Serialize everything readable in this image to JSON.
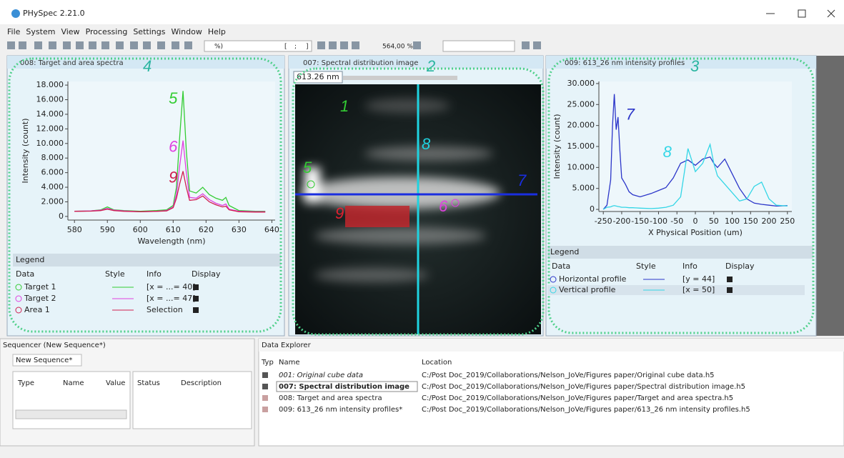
{
  "window": {
    "title": "PHySpec 2.21.0"
  },
  "menu": [
    "File",
    "System",
    "View",
    "Processing",
    "Settings",
    "Window",
    "Help"
  ],
  "toolbar": {
    "texts": [
      "%)",
      "[",
      ";",
      "]"
    ],
    "zoom": "564,00 %"
  },
  "spectra_panel": {
    "title": "008: Target and area spectra",
    "callout": "4",
    "chart": {
      "type": "line",
      "x_label": "Wavelength (nm)",
      "y_label": "Intensity (count)",
      "x": [
        580,
        585,
        588,
        590,
        592,
        595,
        600,
        605,
        608,
        610,
        611,
        612,
        613,
        614,
        615,
        617,
        619,
        621,
        623,
        625,
        626,
        627,
        630,
        635,
        638
      ],
      "series": [
        {
          "name": "Target 1",
          "color": "#33cc33",
          "callout": "5",
          "values": [
            700,
            750,
            900,
            1300,
            900,
            800,
            700,
            800,
            900,
            1500,
            4000,
            11000,
            17200,
            9000,
            3500,
            3200,
            4000,
            3000,
            2500,
            2200,
            2600,
            1500,
            800,
            700,
            700
          ]
        },
        {
          "name": "Target 2",
          "color": "#e040e0",
          "callout": "6",
          "values": [
            700,
            750,
            850,
            1100,
            850,
            750,
            650,
            700,
            800,
            1300,
            3000,
            7000,
            10400,
            6000,
            2600,
            2500,
            3100,
            2300,
            1800,
            1500,
            1700,
            1000,
            700,
            650,
            650
          ]
        },
        {
          "name": "Area 1",
          "color": "#d02050",
          "callout": "9",
          "values": [
            700,
            720,
            800,
            1000,
            800,
            700,
            650,
            700,
            750,
            1200,
            2500,
            4500,
            6200,
            4000,
            2200,
            2300,
            2800,
            2000,
            1600,
            1300,
            1400,
            900,
            650,
            600,
            600
          ]
        }
      ],
      "xlim": [
        578,
        641
      ],
      "ylim": [
        -500,
        18500
      ],
      "xticks": [
        580,
        590,
        600,
        610,
        620,
        630,
        640
      ],
      "yticks": [
        0,
        {
          "value": 2000,
          "label": "2.000"
        },
        {
          "value": 4000,
          "label": "4.000"
        },
        {
          "value": 6000,
          "label": "6.000"
        },
        {
          "value": 8000,
          "label": "8.000"
        },
        {
          "value": 10000,
          "label": "10.000"
        },
        {
          "value": 12000,
          "label": "12.000"
        },
        {
          "value": 14000,
          "label": "14.000"
        },
        {
          "value": 16000,
          "label": "16.000"
        },
        {
          "value": 18000,
          "label": "18.000"
        }
      ]
    },
    "legend": {
      "title": "Legend",
      "columns": [
        "Data",
        "Style",
        "Info",
        "Display"
      ],
      "info": [
        "[x = ...= 40]",
        "[x = ...= 47]",
        "Selection"
      ]
    }
  },
  "image_panel": {
    "title": "007: Spectral distribution image",
    "callout": "2",
    "wavelength": "613.26 nm",
    "image_callouts": [
      "1",
      "5",
      "6",
      "7",
      "8",
      "9"
    ]
  },
  "profile_panel": {
    "title": "009: 613_26 nm intensity profiles",
    "callout": "3",
    "chart": {
      "type": "line",
      "x_label": "X Physical Position (um)",
      "y_label": "Intensity (count)",
      "x": [
        -250,
        -240,
        -230,
        -225,
        -220,
        -215,
        -210,
        -205,
        -200,
        -190,
        -180,
        -170,
        -150,
        -120,
        -100,
        -80,
        -60,
        -40,
        -20,
        0,
        20,
        40,
        50,
        60,
        80,
        100,
        120,
        140,
        160,
        180,
        200,
        220,
        250
      ],
      "series": [
        {
          "name": "Horizontal profile",
          "color": "#2b35c9",
          "callout": "7",
          "values": [
            0,
            1000,
            7000,
            20000,
            27500,
            19000,
            22000,
            14000,
            7500,
            6000,
            4200,
            3500,
            3000,
            3800,
            4500,
            5200,
            7500,
            11000,
            11800,
            10500,
            12000,
            12500,
            11000,
            10000,
            12000,
            8500,
            5000,
            2500,
            1500,
            1200,
            1000,
            800,
            900
          ]
        },
        {
          "name": "Vertical profile",
          "color": "#33d6e6",
          "callout": "8",
          "values": [
            0,
            500,
            600,
            800,
            900,
            800,
            700,
            600,
            500,
            500,
            400,
            400,
            300,
            200,
            300,
            500,
            1000,
            3000,
            14500,
            9000,
            11000,
            15500,
            11000,
            8000,
            6000,
            4000,
            2000,
            2500,
            5500,
            6500,
            2500,
            1000,
            800
          ]
        }
      ],
      "xlim": [
        -262,
        262
      ],
      "ylim": [
        -500,
        30500
      ],
      "xticks": [
        -250,
        -200,
        -150,
        -100,
        -50,
        0,
        50,
        100,
        150,
        200,
        250
      ],
      "yticks": [
        0,
        {
          "value": 5000,
          "label": "5.000"
        },
        {
          "value": 10000,
          "label": "10.000"
        },
        {
          "value": 15000,
          "label": "15.000"
        },
        {
          "value": 20000,
          "label": "20.000"
        },
        {
          "value": 25000,
          "label": "25.000"
        },
        {
          "value": 30000,
          "label": "30.000"
        }
      ]
    },
    "legend": {
      "title": "Legend",
      "columns": [
        "Data",
        "Style",
        "Info",
        "Display"
      ],
      "info": [
        "[y = 44]",
        "[x = 50]"
      ]
    }
  },
  "sequencer": {
    "title": "Sequencer (New Sequence*)",
    "tab": "New Sequence*",
    "columns": [
      "Type",
      "Name",
      "Value"
    ],
    "status_columns": [
      "Status",
      "Description"
    ]
  },
  "data_explorer": {
    "title": "Data Explorer",
    "columns": [
      "Typ",
      "Name",
      "Location"
    ],
    "rows": [
      [
        "001: Original cube data",
        "C:/Post Doc_2019/Collaborations/Nelson_JoVe/Figures paper/Original cube data.h5"
      ],
      [
        "007: Spectral distribution image",
        "C:/Post Doc_2019/Collaborations/Nelson_JoVe/Figures paper/Spectral distribution image.h5"
      ],
      [
        "008: Target and area spectra",
        "C:/Post Doc_2019/Collaborations/Nelson_JoVe/Figures paper/Target and area spectra.h5"
      ],
      [
        "009: 613_26 nm intensity profiles*",
        "C:/Post Doc_2019/Collaborations/Nelson_JoVe/Figures paper/613_26 nm intensity profiles.h5"
      ]
    ]
  }
}
